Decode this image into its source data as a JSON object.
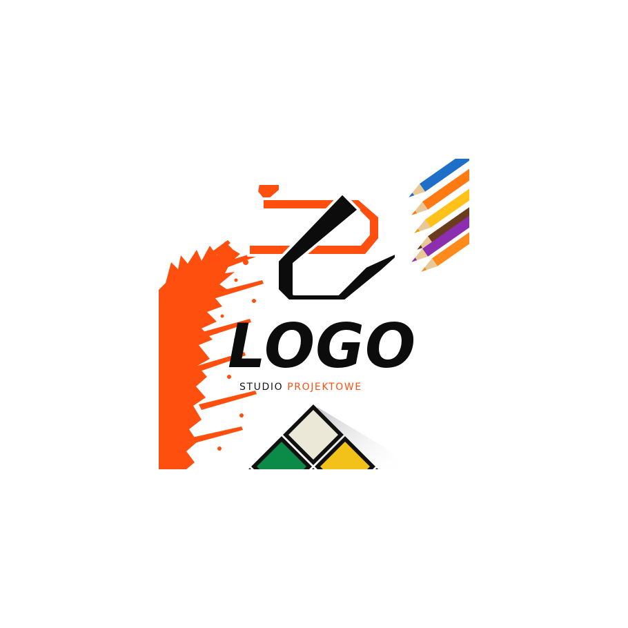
{
  "brand": {
    "wordmark": "LOGO",
    "tagline_word1": "STUDIO",
    "tagline_word2": "PROJEKTOWE"
  },
  "colors": {
    "accent": "#ff4f0f",
    "text": "#0c0c0c",
    "background": "#ffffff"
  },
  "icons": {
    "monogram": "abstract-monogram-icon",
    "splash": "paint-splash",
    "pencils": "colored-pencils",
    "cube": "rubiks-cube"
  }
}
